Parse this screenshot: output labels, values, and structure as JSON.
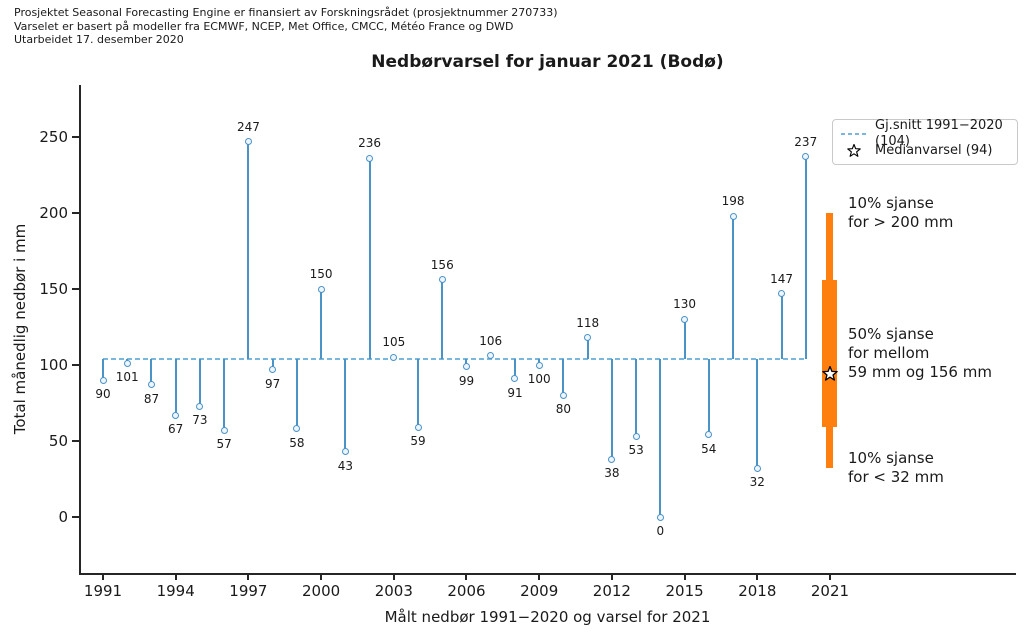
{
  "header": {
    "line1": "Prosjektet Seasonal Forecasting Engine er finansiert av Forskningsrådet (prosjektnummer 270733)",
    "line2": "Varselet er basert på modeller fra ECMWF, NCEP, Met Office, CMCC, Météo France og DWD",
    "line3": "Utarbeidet 17. desember 2020"
  },
  "title": "Nedbørvarsel for januar 2021 (Bodø)",
  "legend": {
    "avg_label": "Gj.snitt 1991−2020 (104)",
    "median_label": "Medianvarsel (94)"
  },
  "colors": {
    "stem": "#4a93c7",
    "marker_edge": "#4a93c7",
    "avg_line": "#7ab7dc",
    "forecast_bar": "#ff7f0e",
    "star_fill": "#ffffff",
    "star_edge": "#000000",
    "text": "#1a1a1a"
  },
  "chart_data": {
    "type": "stem",
    "title": "Nedbørvarsel for januar 2021 (Bodø)",
    "xlabel": "Målt nedbør 1991−2020 og varsel for 2021",
    "ylabel": "Total månedlig nedbør i mm",
    "x": [
      1991,
      1992,
      1993,
      1994,
      1995,
      1996,
      1997,
      1998,
      1999,
      2000,
      2001,
      2002,
      2003,
      2004,
      2005,
      2006,
      2007,
      2008,
      2009,
      2010,
      2011,
      2012,
      2013,
      2014,
      2015,
      2016,
      2017,
      2018,
      2019,
      2020
    ],
    "values": [
      90,
      101,
      87,
      67,
      73,
      57,
      247,
      97,
      58,
      150,
      43,
      236,
      105,
      59,
      156,
      99,
      106,
      91,
      100,
      80,
      118,
      38,
      53,
      0,
      130,
      54,
      198,
      32,
      147,
      237
    ],
    "baseline_average": 104,
    "x_ticks": [
      1991,
      1994,
      1997,
      2000,
      2003,
      2006,
      2009,
      2012,
      2015,
      2018,
      2021
    ],
    "y_ticks": [
      0,
      50,
      100,
      150,
      200,
      250
    ],
    "ylim": [
      -35,
      285
    ],
    "xlim": [
      1990,
      2028.7
    ],
    "grid": false,
    "legend_position": "upper right",
    "forecast": {
      "year": 2021,
      "median": 94,
      "p50_range": [
        59,
        156
      ],
      "p10": 32,
      "p90": 200,
      "annotations": {
        "above": [
          "10% sjanse",
          "for > 200 mm"
        ],
        "middle": [
          "50% sjanse",
          "for mellom",
          "59 mm og 156 mm"
        ],
        "below": [
          "10% sjanse",
          "for < 32 mm"
        ]
      }
    }
  }
}
